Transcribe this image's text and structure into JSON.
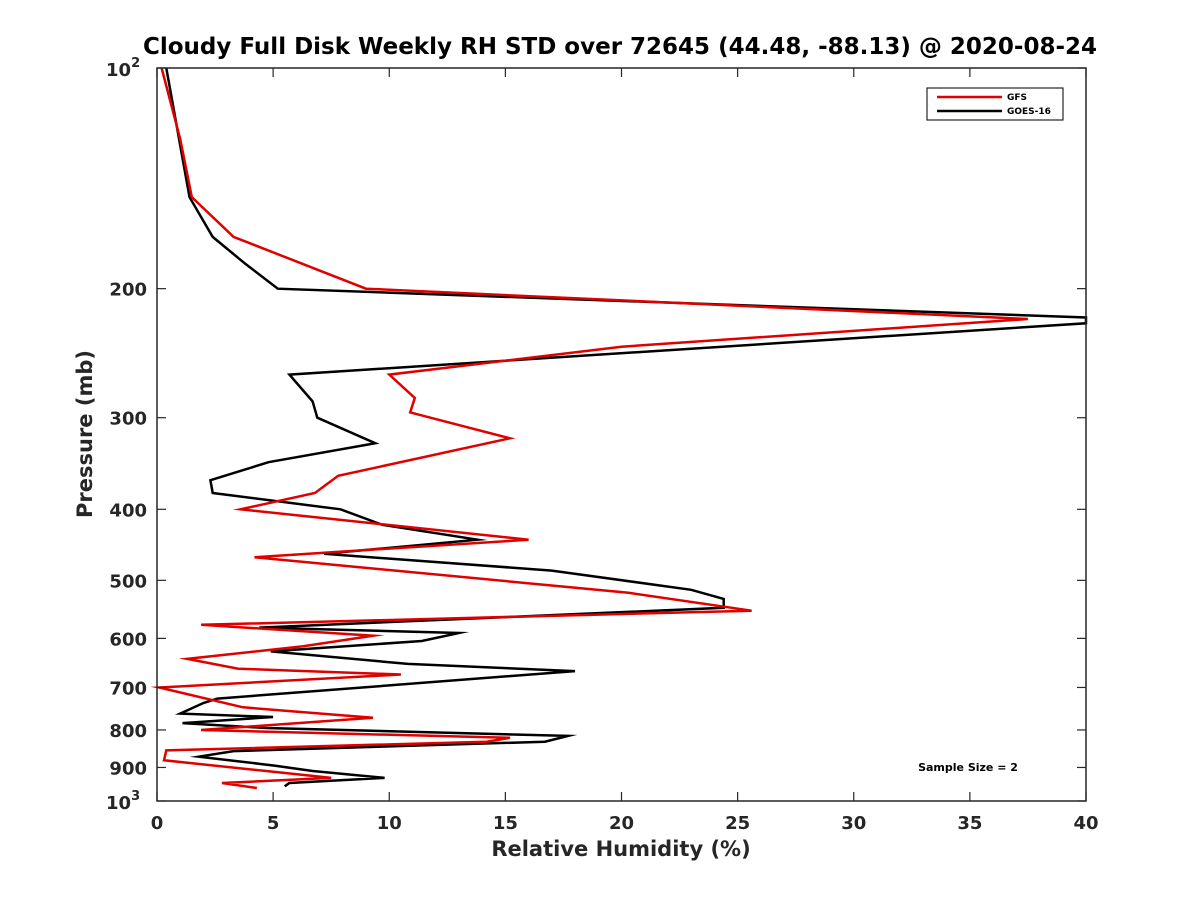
{
  "chart_data": {
    "type": "line",
    "title": "Cloudy Full Disk Weekly RH STD over 72645 (44.48, -88.13) @ 2020-08-24",
    "xlabel": "Relative Humidity (%)",
    "ylabel": "Pressure (mb)",
    "xlim": [
      0,
      40
    ],
    "ylim": [
      100,
      1000
    ],
    "y_scale": "log",
    "y_reversed": true,
    "grid": false,
    "legend_position": "top-right",
    "annotation": "Sample Size = 2",
    "x_ticks": [
      "0",
      "5",
      "10",
      "15",
      "20",
      "25",
      "30",
      "35",
      "40"
    ],
    "y_ticks": [
      {
        "value": 100,
        "base": "10",
        "exp": "2"
      },
      {
        "value": 200,
        "label": "200"
      },
      {
        "value": 300,
        "label": "300"
      },
      {
        "value": 400,
        "label": "400"
      },
      {
        "value": 500,
        "label": "500"
      },
      {
        "value": 600,
        "label": "600"
      },
      {
        "value": 700,
        "label": "700"
      },
      {
        "value": 800,
        "label": "800"
      },
      {
        "value": 900,
        "label": "900"
      },
      {
        "value": 1000,
        "base": "10",
        "exp": "3"
      }
    ],
    "series": [
      {
        "name": "GFS",
        "color": "#e00000",
        "points": [
          [
            0.2,
            100
          ],
          [
            1.0,
            125
          ],
          [
            1.5,
            150
          ],
          [
            3.3,
            170
          ],
          [
            9.0,
            200
          ],
          [
            37.5,
            220
          ],
          [
            20.0,
            240
          ],
          [
            10.0,
            262
          ],
          [
            11.1,
            282
          ],
          [
            10.9,
            295
          ],
          [
            15.2,
            320
          ],
          [
            7.8,
            360
          ],
          [
            6.8,
            380
          ],
          [
            3.6,
            400
          ],
          [
            16.0,
            440
          ],
          [
            4.2,
            465
          ],
          [
            20.3,
            520
          ],
          [
            25.6,
            550
          ],
          [
            1.9,
            575
          ],
          [
            9.3,
            595
          ],
          [
            6.3,
            615
          ],
          [
            1.3,
            640
          ],
          [
            3.5,
            660
          ],
          [
            10.5,
            672
          ],
          [
            0.1,
            700
          ],
          [
            3.7,
            745
          ],
          [
            9.3,
            770
          ],
          [
            1.9,
            800
          ],
          [
            15.2,
            820
          ],
          [
            14.2,
            830
          ],
          [
            0.4,
            853
          ],
          [
            0.3,
            880
          ],
          [
            4.7,
            910
          ],
          [
            7.5,
            930
          ],
          [
            2.8,
            945
          ],
          [
            4.3,
            960
          ]
        ]
      },
      {
        "name": "GOES-16",
        "color": "#000000",
        "points": [
          [
            0.4,
            100
          ],
          [
            1.4,
            150
          ],
          [
            2.4,
            170
          ],
          [
            3.8,
            185
          ],
          [
            5.2,
            200
          ],
          [
            40.0,
            219
          ],
          [
            40.0,
            223
          ],
          [
            5.7,
            262
          ],
          [
            6.7,
            285
          ],
          [
            6.9,
            300
          ],
          [
            9.4,
            325
          ],
          [
            4.8,
            345
          ],
          [
            2.3,
            365
          ],
          [
            2.4,
            380
          ],
          [
            7.9,
            400
          ],
          [
            9.7,
            420
          ],
          [
            13.8,
            440
          ],
          [
            7.2,
            460
          ],
          [
            17.0,
            485
          ],
          [
            23.0,
            515
          ],
          [
            24.4,
            530
          ],
          [
            24.4,
            545
          ],
          [
            4.4,
            580
          ],
          [
            13.0,
            590
          ],
          [
            11.4,
            605
          ],
          [
            4.9,
            625
          ],
          [
            10.8,
            650
          ],
          [
            18.0,
            665
          ],
          [
            2.6,
            725
          ],
          [
            2.0,
            735
          ],
          [
            1.0,
            760
          ],
          [
            5.0,
            768
          ],
          [
            1.1,
            783
          ],
          [
            4.7,
            795
          ],
          [
            17.7,
            815
          ],
          [
            16.7,
            830
          ],
          [
            3.3,
            855
          ],
          [
            1.8,
            870
          ],
          [
            5.1,
            895
          ],
          [
            6.7,
            910
          ],
          [
            9.8,
            930
          ],
          [
            5.7,
            945
          ],
          [
            5.5,
            955
          ]
        ]
      }
    ]
  }
}
